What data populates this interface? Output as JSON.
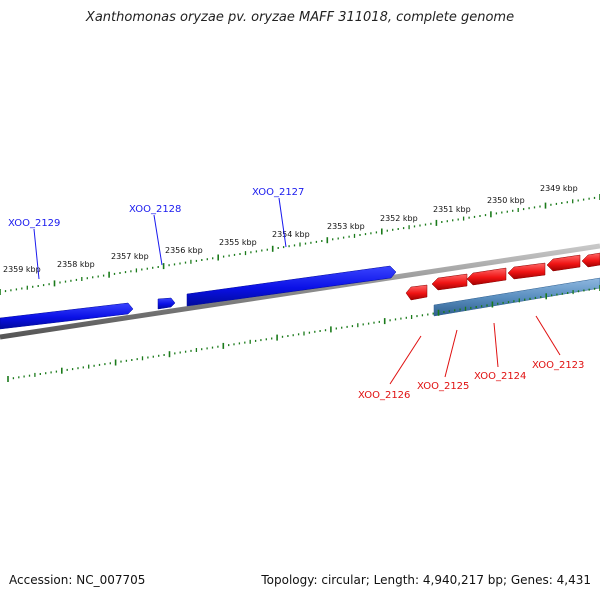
{
  "title": "Xanthomonas oryzae pv. oryzae MAFF 311018, complete genome",
  "footer": {
    "accession": "Accession: NC_007705",
    "summary": "Topology: circular; Length: 4,940,217 bp; Genes: 4,431"
  },
  "colors": {
    "forward_gene": "#0a10e6",
    "reverse_gene": "#f01414",
    "reverse_gene_highlight": "#5a8fc0",
    "backbone": "#7a7a7a",
    "ticks": "#1a7a1a",
    "forward_label": "#1a1aee",
    "reverse_label": "#e01010"
  },
  "scale": {
    "unit": "kbp",
    "labels": [
      "2349 kbp",
      "2350 kbp",
      "2351 kbp",
      "2352 kbp",
      "2353 kbp",
      "2354 kbp",
      "2355 kbp",
      "2356 kbp",
      "2357 kbp",
      "2358 kbp",
      "2359 kbp"
    ]
  },
  "gene_labels": {
    "forward": [
      "XOO_2129",
      "XOO_2128",
      "XOO_2127"
    ],
    "reverse": [
      "XOO_2126",
      "XOO_2125",
      "XOO_2124",
      "XOO_2123"
    ]
  }
}
